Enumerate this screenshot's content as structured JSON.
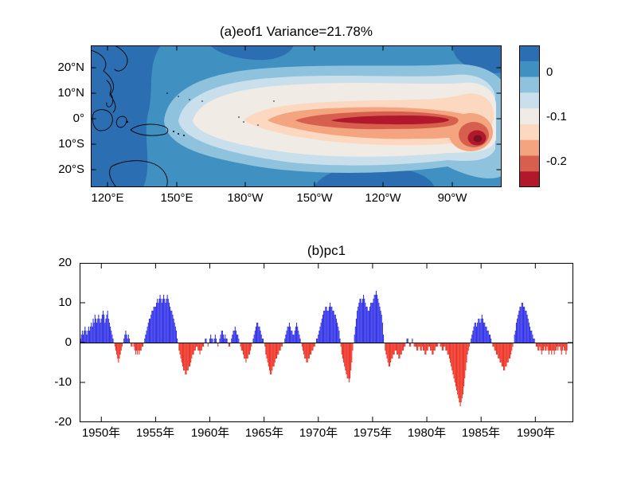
{
  "figure": {
    "background": "#ffffff"
  },
  "chart_data": [
    {
      "type": "contour_map",
      "title": "(a)eof1  Variance=21.78%",
      "x_axis": {
        "label": "longitude",
        "ticks": [
          "120°E",
          "150°E",
          "180°W",
          "150°W",
          "120°W",
          "90°W"
        ]
      },
      "y_axis": {
        "label": "latitude",
        "ticks": [
          "20°N",
          "10°N",
          "0°",
          "10°S",
          "20°S"
        ]
      },
      "colorbar_labels": [
        "0",
        "-0.1",
        "-0.2"
      ],
      "value_range": [
        0.05,
        -0.25
      ],
      "palette": [
        "#2b6fb2",
        "#4190c2",
        "#8fc3dd",
        "#c9dfec",
        "#f1ebe5",
        "#fcd8c0",
        "#f4a57f",
        "#d6604d",
        "#b2182b"
      ],
      "extreme_color": "#7c0f22",
      "description": "EOF1 spatial pattern of tropical Pacific SST anomalies: a negative (warm-colored) tongue along the equator extending from near 180° to the South American coast, with minimum loading (≈ -0.25) centered near 90°W and just south of the equator; weakly positive (blue) loadings over the western Pacific and off-equatorial regions."
    },
    {
      "type": "bar",
      "title": "(b)pc1",
      "x_start_year": 1948,
      "samples_per_year": 12,
      "x_domain": [
        1948,
        1993.5
      ],
      "tick_years": [
        1950,
        1955,
        1960,
        1965,
        1970,
        1975,
        1980,
        1985,
        1990
      ],
      "x_axis": {
        "ticks": [
          "1950年",
          "1955年",
          "1960年",
          "1965年",
          "1970年",
          "1975年",
          "1980年",
          "1985年",
          "1990年"
        ]
      },
      "y_axis": {
        "ticks": [
          "20",
          "10",
          "0",
          "-10",
          "-20"
        ]
      },
      "ylim": [
        -20,
        20
      ],
      "colors": {
        "positive": "#3434e8",
        "negative": "#ee3426"
      },
      "values": [
        2,
        1,
        2,
        3,
        2,
        3,
        4,
        3,
        2,
        3,
        4,
        3,
        4,
        5,
        4,
        6,
        5,
        7,
        6,
        5,
        6,
        7,
        6,
        5,
        6,
        7,
        8,
        7,
        5,
        6,
        7,
        8,
        6,
        5,
        4,
        3,
        2,
        1,
        0,
        -1,
        -2,
        -3,
        -4,
        -5,
        -4,
        -3,
        -2,
        -1,
        0,
        1,
        2,
        3,
        2,
        1,
        2,
        1,
        0,
        -1,
        -1,
        0,
        -1,
        -2,
        -3,
        -2,
        -3,
        -2,
        -3,
        -2,
        -2,
        -1,
        -1,
        0,
        1,
        2,
        3,
        4,
        5,
        6,
        6,
        7,
        8,
        8,
        9,
        9,
        9,
        10,
        11,
        10,
        11,
        12,
        11,
        10,
        11,
        12,
        11,
        10,
        11,
        12,
        11,
        10,
        9,
        8,
        8,
        7,
        6,
        5,
        4,
        3,
        1,
        0,
        -2,
        -3,
        -4,
        -5,
        -6,
        -7,
        -7,
        -8,
        -8,
        -7,
        -7,
        -6,
        -6,
        -5,
        -4,
        -3,
        -3,
        -2,
        -2,
        -1,
        -1,
        -2,
        -2,
        -3,
        -2,
        -2,
        -1,
        -1,
        0,
        1,
        1,
        0,
        -1,
        0,
        1,
        2,
        1,
        1,
        0,
        1,
        2,
        1,
        0,
        -1,
        0,
        1,
        2,
        3,
        3,
        2,
        1,
        2,
        1,
        1,
        0,
        -1,
        -1,
        0,
        1,
        2,
        3,
        3,
        4,
        3,
        2,
        2,
        1,
        0,
        -1,
        -2,
        -2,
        -3,
        -4,
        -4,
        -5,
        -4,
        -4,
        -3,
        -3,
        -2,
        -1,
        0,
        1,
        2,
        3,
        4,
        5,
        5,
        4,
        4,
        3,
        2,
        1,
        1,
        0,
        -1,
        -3,
        -4,
        -5,
        -6,
        -7,
        -8,
        -8,
        -7,
        -6,
        -6,
        -5,
        -4,
        -4,
        -3,
        -3,
        -2,
        -2,
        -1,
        -1,
        0,
        0,
        1,
        2,
        3,
        4,
        4,
        5,
        4,
        3,
        3,
        2,
        2,
        3,
        4,
        5,
        4,
        3,
        2,
        1,
        0,
        -1,
        -2,
        -3,
        -4,
        -4,
        -5,
        -5,
        -4,
        -4,
        -3,
        -3,
        -2,
        -2,
        -1,
        -1,
        0,
        1,
        1,
        2,
        3,
        4,
        5,
        6,
        7,
        8,
        8,
        9,
        9,
        8,
        8,
        9,
        10,
        9,
        9,
        8,
        8,
        7,
        7,
        6,
        5,
        4,
        3,
        1,
        -1,
        -3,
        -4,
        -5,
        -6,
        -7,
        -8,
        -9,
        -9,
        -10,
        -9,
        -7,
        -5,
        -2,
        0,
        2,
        4,
        6,
        8,
        9,
        10,
        11,
        11,
        10,
        11,
        12,
        11,
        10,
        9,
        9,
        8,
        8,
        9,
        10,
        10,
        10,
        11,
        12,
        12,
        13,
        12,
        11,
        10,
        9,
        8,
        7,
        5,
        2,
        0,
        -2,
        -3,
        -4,
        -5,
        -6,
        -6,
        -5,
        -4,
        -4,
        -3,
        -3,
        -2,
        -2,
        -3,
        -3,
        -4,
        -4,
        -3,
        -3,
        -2,
        -2,
        -1,
        -1,
        0,
        1,
        1,
        0,
        -1,
        -1,
        0,
        1,
        0,
        -1,
        -1,
        -1,
        -2,
        -2,
        -1,
        -1,
        -2,
        -2,
        -1,
        -2,
        -2,
        -3,
        -3,
        -2,
        -2,
        -1,
        -1,
        -2,
        -2,
        -3,
        -3,
        -2,
        -2,
        -1,
        -1,
        -1,
        0,
        0,
        -1,
        -1,
        -2,
        -2,
        -1,
        -1,
        -2,
        -2,
        -3,
        -3,
        -4,
        -5,
        -6,
        -7,
        -8,
        -9,
        -10,
        -11,
        -12,
        -13,
        -14,
        -15,
        -16,
        -15,
        -14,
        -13,
        -11,
        -9,
        -7,
        -5,
        -3,
        -2,
        -1,
        0,
        1,
        2,
        3,
        4,
        5,
        5,
        4,
        5,
        6,
        6,
        5,
        6,
        7,
        6,
        5,
        5,
        4,
        4,
        3,
        3,
        2,
        2,
        1,
        0,
        -1,
        -1,
        -2,
        -2,
        -3,
        -3,
        -4,
        -4,
        -5,
        -5,
        -6,
        -6,
        -7,
        -7,
        -6,
        -6,
        -5,
        -5,
        -4,
        -4,
        -3,
        -2,
        -1,
        0,
        2,
        3,
        5,
        6,
        7,
        8,
        9,
        9,
        10,
        10,
        9,
        9,
        8,
        8,
        7,
        6,
        5,
        4,
        3,
        3,
        2,
        1,
        1,
        0,
        -1,
        -1,
        -2,
        -2,
        -1,
        -2,
        -3,
        -2,
        -2,
        -1,
        -2,
        -2,
        -1,
        -2,
        -3,
        -2,
        -2,
        -3,
        -2,
        -2,
        -3,
        -2,
        -2,
        -1,
        -2,
        -1,
        -1,
        -2,
        -3,
        -2,
        -1,
        -2,
        -2,
        -3,
        -2
      ]
    }
  ]
}
